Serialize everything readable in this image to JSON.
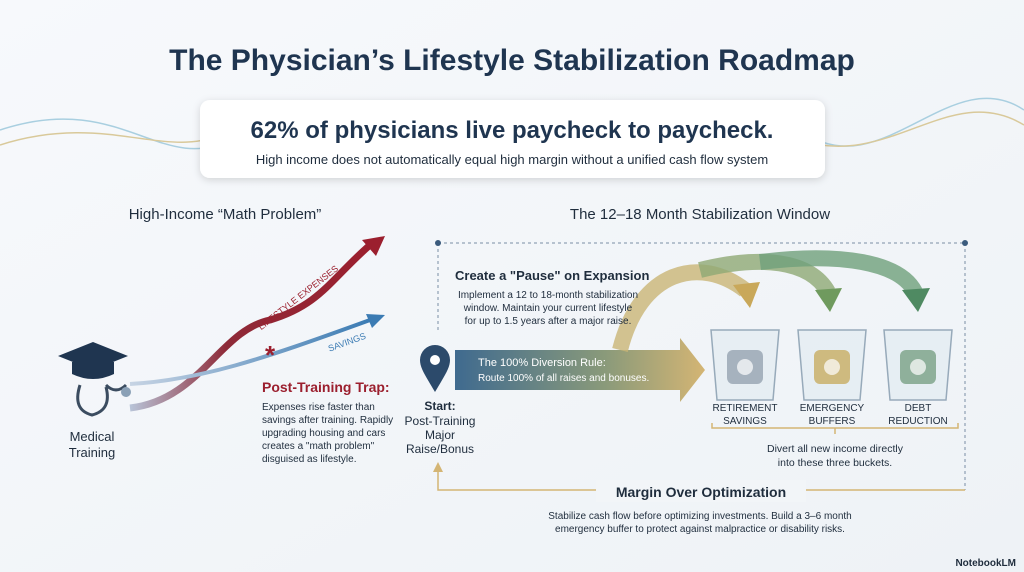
{
  "header": {
    "title": "The Physician’s Lifestyle Stabilization Roadmap"
  },
  "banner": {
    "stat": "62%",
    "headline": "of physicians live paycheck to paycheck.",
    "subtext": "High income does not automatically equal high margin without a unified cash flow system"
  },
  "left": {
    "title": "High-Income “Math Problem”",
    "expenses_label": "LIFESTYLE EXPENSES",
    "savings_label": "SAVINGS",
    "origin": [
      "Medical",
      "Training"
    ],
    "trap_title": "Post-Training Trap:",
    "trap_body": [
      "Expenses rise faster than",
      "savings after training. Rapidly",
      "upgrading housing and cars",
      "creates a \"math problem\"",
      "disguised as lifestyle."
    ]
  },
  "right": {
    "title": "The 12–18 Month Stabilization Window",
    "pause_title": "Create a \"Pause\" on Expansion",
    "pause_body": [
      "Implement a 12 to 18-month stabilization",
      "window. Maintain your current lifestyle",
      "for up to 1.5 years after a major raise."
    ],
    "rule_title": "The 100% Diversion Rule:",
    "rule_body": "Route 100% of all raises and bonuses.",
    "start_title": "Start:",
    "start_body": [
      "Post-Training",
      "Major",
      "Raise/Bonus"
    ],
    "buckets": [
      {
        "label": [
          "RETIREMENT",
          "SAVINGS"
        ]
      },
      {
        "label": [
          "EMERGENCY",
          "BUFFERS"
        ]
      },
      {
        "label": [
          "DEBT",
          "REDUCTION"
        ]
      }
    ],
    "buckets_note": [
      "Divert all new income directly",
      "into these three buckets."
    ],
    "margin_title": "Margin Over Optimization",
    "margin_body": [
      "Stabilize cash flow before optimizing investments. Build a 3–6 month",
      "emergency buffer to protect against malpractice or disability risks."
    ]
  },
  "footer": {
    "brand": "NotebookLM"
  }
}
